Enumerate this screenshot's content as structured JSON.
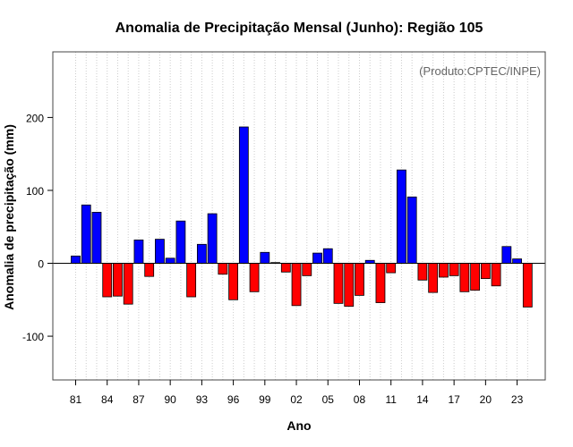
{
  "chart_data": {
    "type": "bar",
    "title": "Anomalia de Precipitação Mensal (Junho): Região 105",
    "xlabel": "Ano",
    "ylabel": "Anomalia de precipitação (mm)",
    "credit": "(Produto:CPTEC/INPE)",
    "ylim": [
      -160,
      290
    ],
    "yticks": [
      -100,
      0,
      100,
      200
    ],
    "grid": "vertical dotted, one per year",
    "zero_line": true,
    "colors": {
      "positive": "#0000ff",
      "negative": "#ff0000",
      "border": "#000000"
    },
    "x": [
      1981,
      1982,
      1983,
      1984,
      1985,
      1986,
      1987,
      1988,
      1989,
      1990,
      1991,
      1992,
      1993,
      1994,
      1995,
      1996,
      1997,
      1998,
      1999,
      2000,
      2001,
      2002,
      2003,
      2004,
      2005,
      2006,
      2007,
      2008,
      2009,
      2010,
      2011,
      2012,
      2013,
      2014,
      2015,
      2016,
      2017,
      2018,
      2019,
      2020,
      2021,
      2022,
      2023,
      2024
    ],
    "values": [
      10,
      80,
      70,
      -46,
      -45,
      -56,
      32,
      -18,
      33,
      7,
      58,
      -46,
      26,
      68,
      -15,
      -50,
      187,
      -39,
      15,
      1,
      -12,
      -58,
      -17,
      14,
      20,
      -55,
      -59,
      -44,
      4,
      -54,
      -13,
      128,
      91,
      -23,
      -40,
      -19,
      -17,
      -39,
      -37,
      -21,
      -31,
      23,
      6,
      -60
    ],
    "xtick_labels": [
      {
        "year": 1981,
        "label": "81"
      },
      {
        "year": 1984,
        "label": "84"
      },
      {
        "year": 1987,
        "label": "87"
      },
      {
        "year": 1990,
        "label": "90"
      },
      {
        "year": 1993,
        "label": "93"
      },
      {
        "year": 1996,
        "label": "96"
      },
      {
        "year": 1999,
        "label": "99"
      },
      {
        "year": 2002,
        "label": "02"
      },
      {
        "year": 2005,
        "label": "05"
      },
      {
        "year": 2008,
        "label": "08"
      },
      {
        "year": 2011,
        "label": "11"
      },
      {
        "year": 2014,
        "label": "14"
      },
      {
        "year": 2017,
        "label": "17"
      },
      {
        "year": 2020,
        "label": "20"
      },
      {
        "year": 2023,
        "label": "23"
      }
    ]
  }
}
